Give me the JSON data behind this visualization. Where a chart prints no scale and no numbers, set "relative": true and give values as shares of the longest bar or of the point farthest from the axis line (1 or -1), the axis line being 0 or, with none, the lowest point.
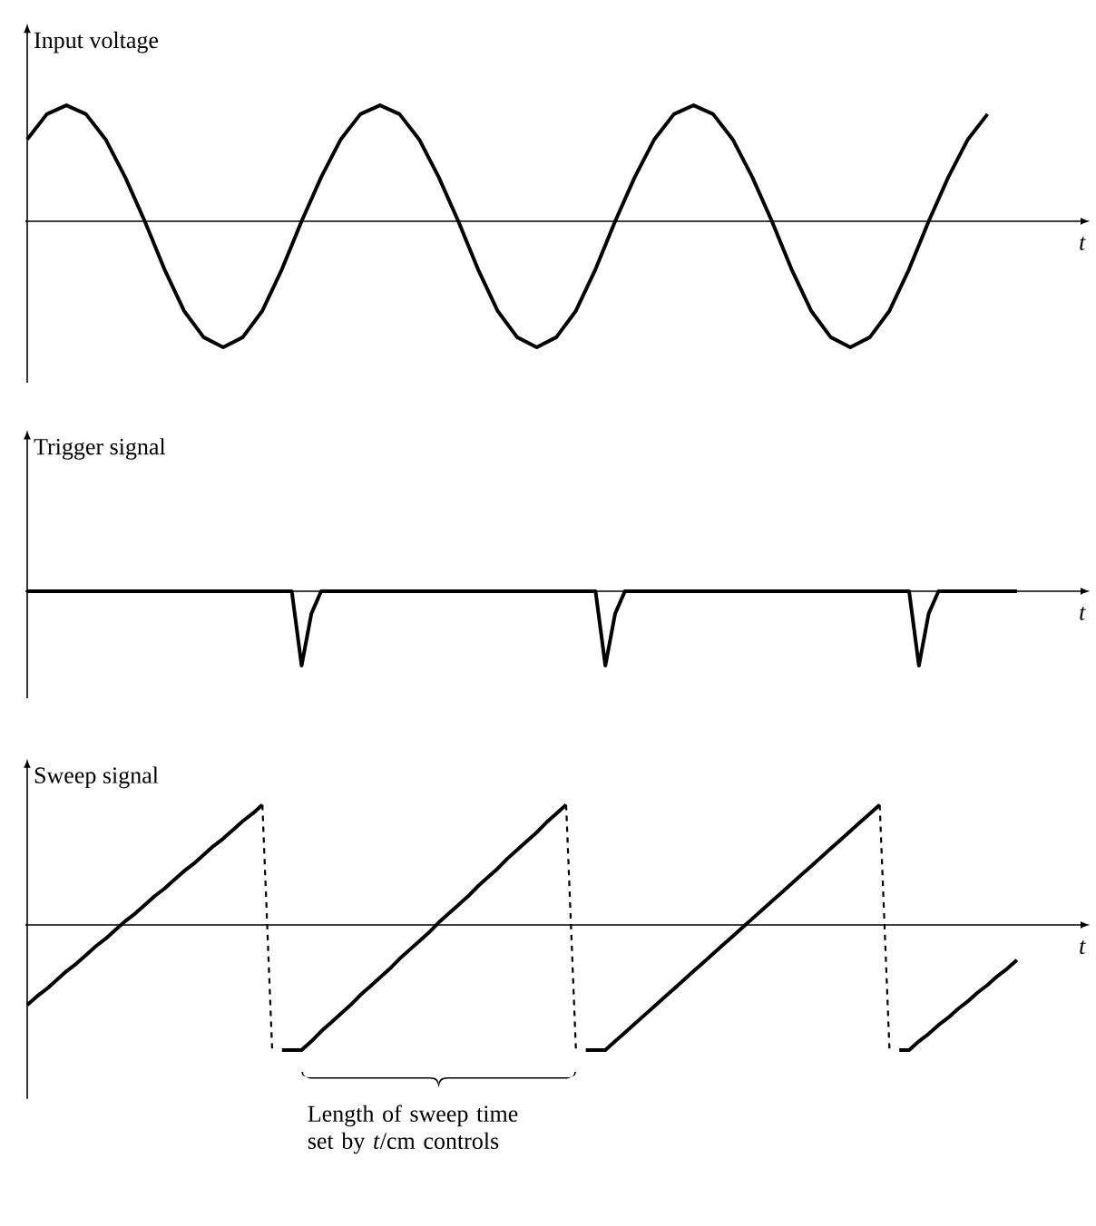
{
  "chart_data": [
    {
      "type": "line",
      "relative": true,
      "ylabel": "Input voltage",
      "xlabel": "t",
      "marker": "none",
      "categories": [
        null,
        null,
        null,
        null,
        null,
        null,
        null,
        null,
        null,
        null,
        null,
        null,
        null,
        null,
        null,
        null,
        null,
        null,
        null,
        null,
        null,
        null,
        null,
        null,
        null,
        null,
        null,
        null,
        null,
        null,
        null,
        null,
        null,
        null,
        null,
        null,
        null,
        null,
        null,
        null,
        null,
        null,
        null,
        null,
        null,
        null,
        null,
        null,
        null,
        null,
        null,
        null,
        null,
        null,
        null
      ],
      "series": [
        {
          "color": "#000000",
          "line_style": "solid",
          "values": [
            0.65,
            0.85,
            0.92,
            0.85,
            0.65,
            0.35,
            0,
            -0.38,
            -0.71,
            -0.92,
            -1,
            -0.92,
            -0.71,
            -0.38,
            0,
            0.35,
            0.65,
            0.85,
            0.92,
            0.85,
            0.65,
            0.35,
            0,
            -0.38,
            -0.71,
            -0.92,
            -1,
            -0.92,
            -0.71,
            -0.38,
            0,
            0.35,
            0.65,
            0.85,
            0.92,
            0.85,
            0.65,
            0.35,
            0,
            -0.38,
            -0.71,
            -0.92,
            -1,
            -0.92,
            -0.71,
            -0.38,
            0,
            0.35,
            0.65,
            0.85,
            null,
            null,
            null,
            null,
            null
          ]
        }
      ]
    },
    {
      "type": "line",
      "relative": true,
      "ylabel": "Trigger signal",
      "xlabel": "t",
      "marker": "none",
      "categories": [
        null,
        null,
        null,
        null,
        null,
        null,
        null,
        null,
        null,
        null,
        null,
        null,
        null,
        null,
        null,
        null,
        null,
        null,
        null,
        null,
        null,
        null,
        null,
        null,
        null,
        null,
        null,
        null,
        null,
        null,
        null,
        null,
        null,
        null,
        null,
        null,
        null,
        null,
        null,
        null,
        null,
        null,
        null,
        null,
        null,
        null,
        null,
        null,
        null,
        null,
        null,
        null,
        null,
        null,
        null,
        null,
        null,
        null,
        null,
        null,
        null,
        null,
        null,
        null,
        null,
        null,
        null,
        null,
        null,
        null,
        null,
        null,
        null,
        null,
        null,
        null,
        null,
        null,
        null,
        null,
        null,
        null,
        null,
        null,
        null,
        null,
        null,
        null,
        null,
        null,
        null,
        null,
        null,
        null,
        null,
        null,
        null,
        null,
        null,
        null,
        null,
        null,
        null,
        null,
        null,
        null,
        null,
        null,
        null
      ],
      "series": [
        {
          "color": "#000000",
          "line_style": "solid",
          "values": [
            0,
            0,
            0,
            0,
            0,
            0,
            0,
            0,
            0,
            0,
            0,
            0,
            0,
            0,
            0,
            0,
            0,
            0,
            0,
            0,
            0,
            0,
            0,
            0,
            0,
            0,
            0,
            0,
            -1,
            -0.3,
            0,
            0,
            0,
            0,
            0,
            0,
            0,
            0,
            0,
            0,
            0,
            0,
            0,
            0,
            0,
            0,
            0,
            0,
            0,
            0,
            0,
            0,
            0,
            0,
            0,
            0,
            0,
            0,
            0,
            -1,
            -0.3,
            0,
            0,
            0,
            0,
            0,
            0,
            0,
            0,
            0,
            0,
            0,
            0,
            0,
            0,
            0,
            0,
            0,
            0,
            0,
            0,
            0,
            0,
            0,
            0,
            0,
            0,
            0,
            0,
            0,
            0,
            -1,
            -0.3,
            0,
            0,
            0,
            0,
            0,
            0,
            0,
            0,
            0,
            null,
            null,
            null,
            null,
            null,
            null,
            null
          ]
        }
      ]
    },
    {
      "type": "line",
      "relative": true,
      "ylabel": "Sweep signal",
      "xlabel": "t",
      "marker": "none",
      "annotations": [
        "Length of sweep time set by *t*/cm controls"
      ],
      "categories": [
        null,
        null,
        null,
        null,
        null,
        null,
        null,
        null,
        null,
        null,
        null,
        null,
        null,
        null,
        null,
        null,
        null,
        null,
        null,
        null,
        null,
        null,
        null,
        null,
        null,
        null,
        null,
        null,
        null,
        null,
        null,
        null,
        null,
        null,
        null,
        null,
        null,
        null,
        null,
        null,
        null,
        null,
        null,
        null,
        null,
        null,
        null,
        null,
        null,
        null,
        null,
        null,
        null,
        null,
        null,
        null,
        null,
        null,
        null,
        null,
        null,
        null,
        null,
        null,
        null,
        null,
        null,
        null,
        null,
        null,
        null,
        null,
        null,
        null,
        null,
        null,
        null,
        null,
        null,
        null,
        null,
        null,
        null,
        null,
        null,
        null,
        null,
        null,
        null,
        null,
        null,
        null,
        null,
        null,
        null,
        null,
        null,
        null,
        null,
        null,
        null,
        null,
        null,
        null,
        null,
        null,
        null,
        null,
        null
      ],
      "series": [
        {
          "color": "#000000",
          "line_style": "solid",
          "values": [
            -0.64,
            -0.57,
            -0.51,
            -0.44,
            -0.37,
            -0.31,
            -0.24,
            -0.17,
            -0.11,
            -0.04,
            0.03,
            0.09,
            0.16,
            0.23,
            0.29,
            0.36,
            0.43,
            0.49,
            0.56,
            0.63,
            0.69,
            0.76,
            0.83,
            0.89,
            0.96,
            null,
            -1,
            -1,
            -1,
            -0.93,
            -0.85,
            -0.78,
            -0.71,
            -0.64,
            -0.56,
            -0.49,
            -0.42,
            -0.35,
            -0.27,
            -0.2,
            -0.13,
            -0.06,
            0.02,
            0.09,
            0.16,
            0.23,
            0.31,
            0.38,
            0.45,
            0.53,
            0.6,
            0.67,
            0.74,
            0.82,
            0.89,
            0.96,
            null,
            -1,
            -1,
            -1,
            -0.93,
            -0.86,
            -0.79,
            -0.72,
            -0.65,
            -0.58,
            -0.51,
            -0.44,
            -0.37,
            -0.3,
            -0.23,
            -0.16,
            -0.09,
            -0.02,
            0.05,
            0.12,
            0.19,
            0.26,
            0.33,
            0.4,
            0.47,
            0.54,
            0.61,
            0.68,
            0.75,
            0.82,
            0.89,
            0.96,
            null,
            -1,
            -1,
            -0.93,
            -0.87,
            -0.8,
            -0.74,
            -0.67,
            -0.61,
            -0.54,
            -0.48,
            -0.41,
            -0.35,
            -0.28,
            null,
            null,
            null,
            null,
            null,
            null,
            null
          ]
        },
        {
          "color": "#000000",
          "line_style": "dashed",
          "values": [
            null,
            null,
            null,
            null,
            null,
            null,
            null,
            null,
            null,
            null,
            null,
            null,
            null,
            null,
            null,
            null,
            null,
            null,
            null,
            null,
            null,
            null,
            null,
            null,
            0.96,
            -1,
            null,
            null,
            null,
            null,
            null,
            null,
            null,
            null,
            null,
            null,
            null,
            null,
            null,
            null,
            null,
            null,
            null,
            null,
            null,
            null,
            null,
            null,
            null,
            null,
            null,
            null,
            null,
            null,
            null,
            0.96,
            -1,
            null,
            null,
            null,
            null,
            null,
            null,
            null,
            null,
            null,
            null,
            null,
            null,
            null,
            null,
            null,
            null,
            null,
            null,
            null,
            null,
            null,
            null,
            null,
            null,
            null,
            null,
            null,
            null,
            null,
            null,
            0.96,
            -1,
            null,
            null,
            null,
            null,
            null,
            null,
            null,
            null,
            null,
            null,
            null,
            null,
            null,
            null,
            null,
            null,
            null,
            null,
            null,
            null
          ]
        }
      ]
    }
  ]
}
